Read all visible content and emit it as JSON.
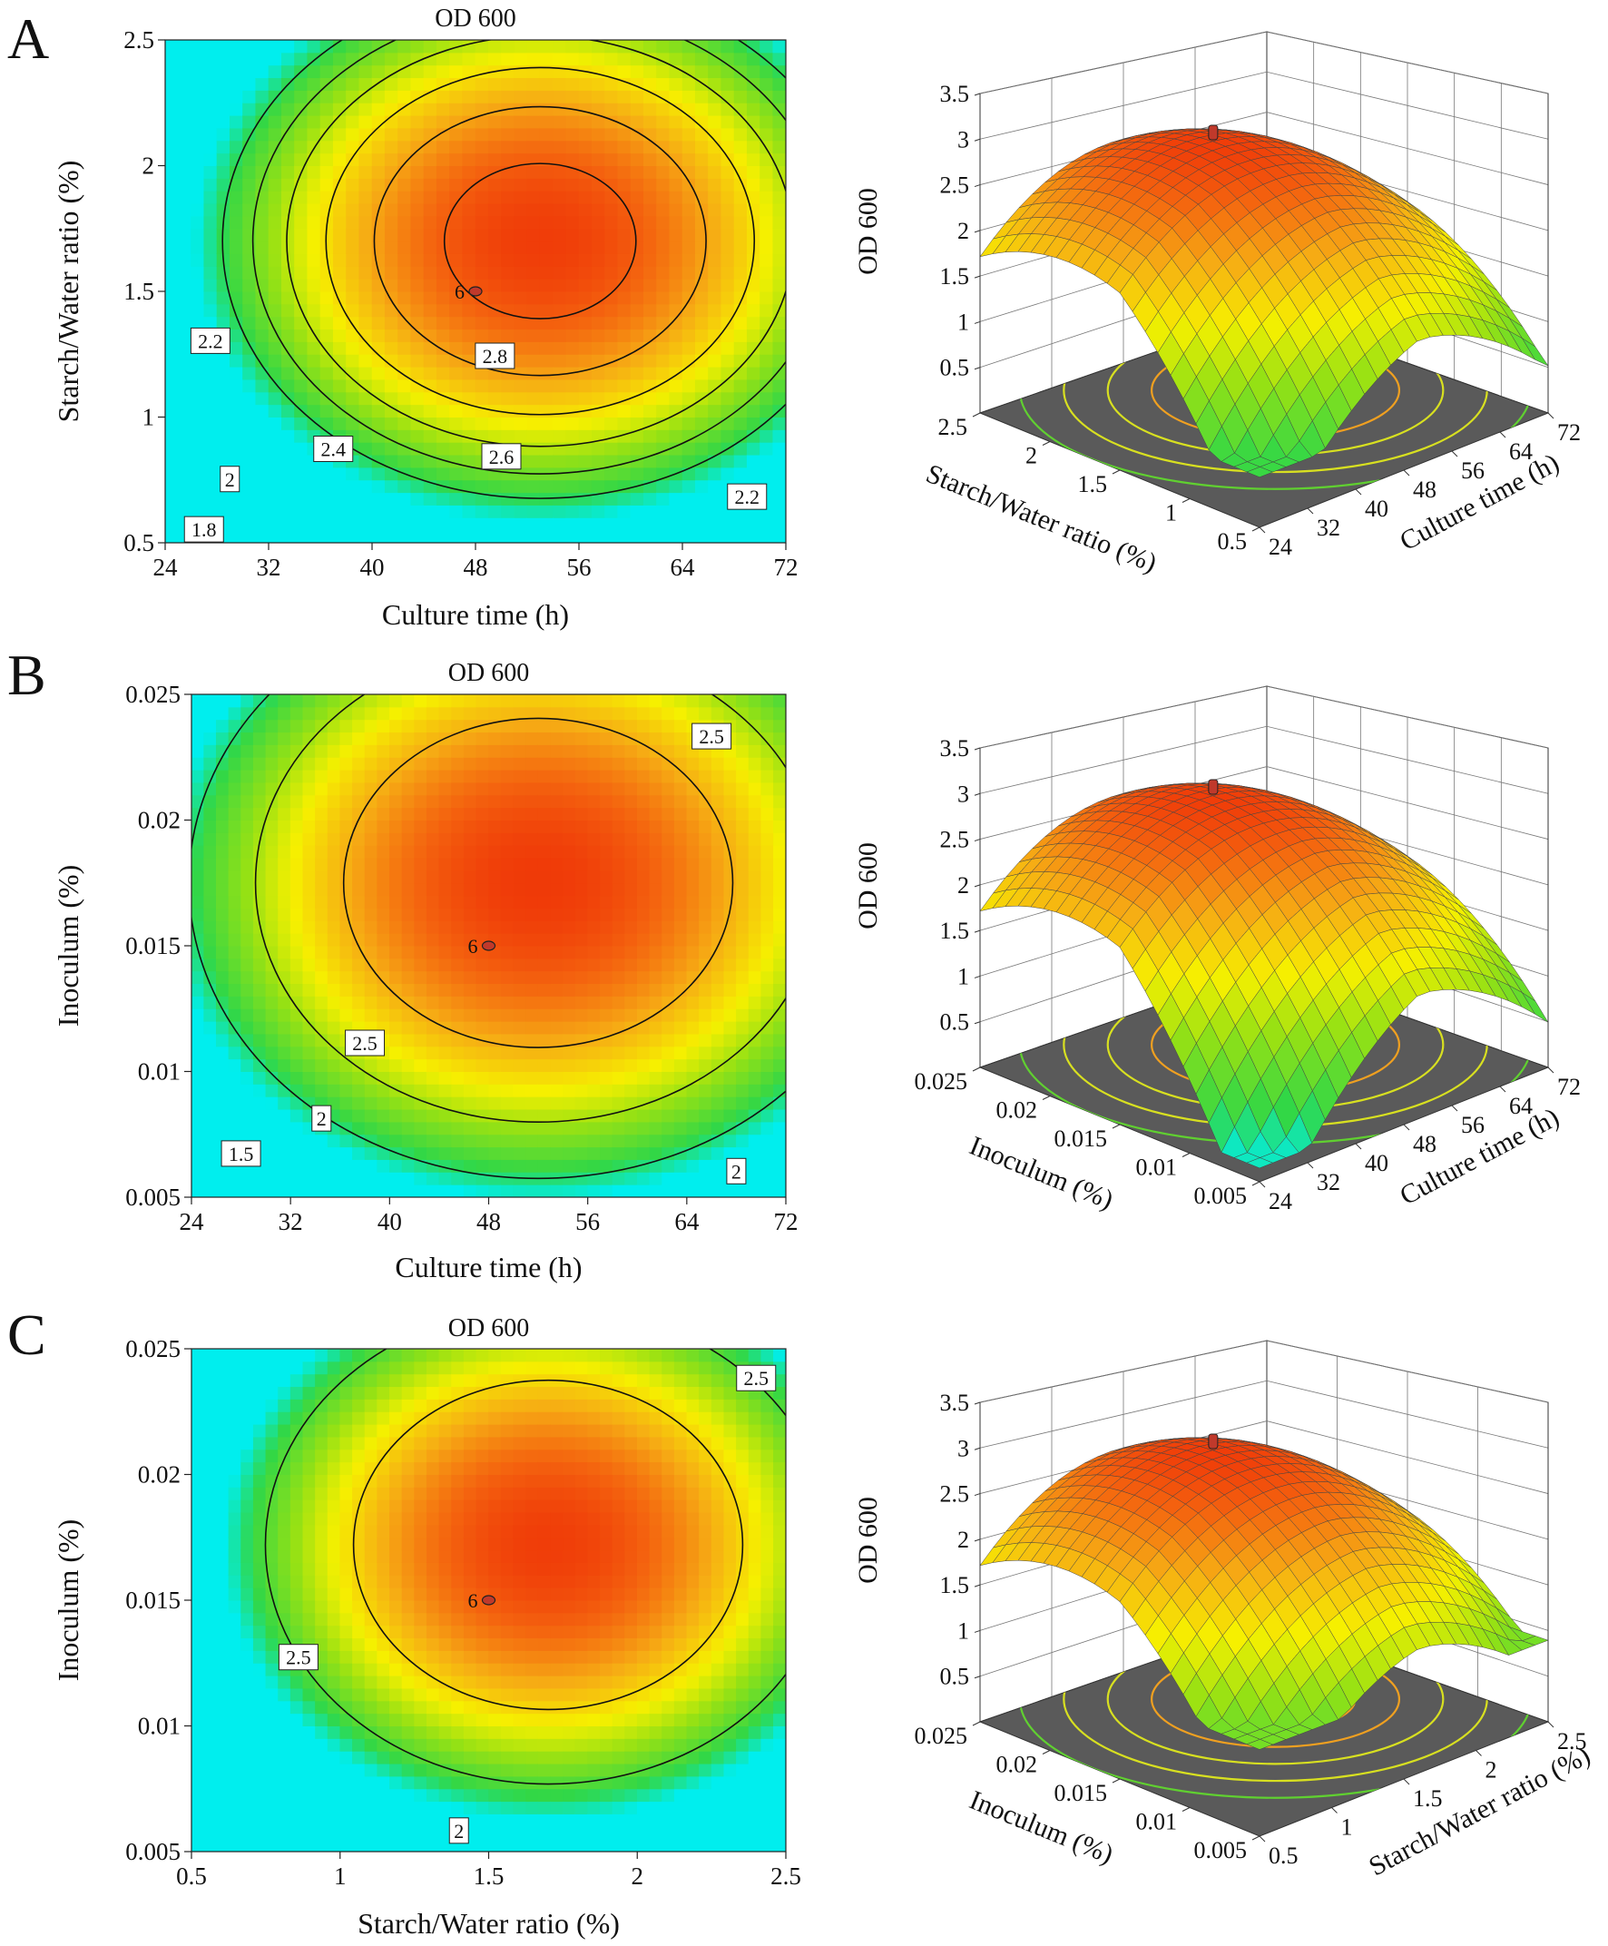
{
  "colors": {
    "contour_line": "#111111",
    "floor": "#5a5a5a",
    "surface_mesh": "#444444",
    "design_point": "#c0392b"
  },
  "chart_data": [
    {
      "panel": "A",
      "type": "contour",
      "title": "OD 600",
      "xlabel": "Culture time (h)",
      "ylabel": "Starch/Water ratio (%)",
      "xlim": [
        24,
        72
      ],
      "ylim": [
        0.5,
        2.5
      ],
      "xticks": [
        "24",
        "32",
        "40",
        "48",
        "56",
        "64",
        "72"
      ],
      "yticks": [
        "0.5",
        "1",
        "1.5",
        "2",
        "2.5"
      ],
      "model": {
        "cx": 53,
        "cy": 1.7,
        "peak": 2.9,
        "ax": 0.00043,
        "ay": 0.28
      },
      "zrange": [
        1.6,
        2.95
      ],
      "contour_levels": [
        "1.8",
        "2",
        "2.2",
        "2.4",
        "2.6",
        "2.8"
      ],
      "contour_labels": [
        {
          "text": "2.8",
          "x": 49.5,
          "y": 1.24
        },
        {
          "text": "2.6",
          "x": 50.0,
          "y": 0.84
        },
        {
          "text": "2.4",
          "x": 37.0,
          "y": 0.87
        },
        {
          "text": "2.2",
          "x": 27.5,
          "y": 1.3
        },
        {
          "text": "2",
          "x": 29.0,
          "y": 0.75
        },
        {
          "text": "1.8",
          "x": 27.0,
          "y": 0.55
        },
        {
          "text": "2.2",
          "x": 69.0,
          "y": 0.68
        }
      ],
      "design_point": {
        "x": 48,
        "y": 1.5,
        "label": "6"
      }
    },
    {
      "panel": "A",
      "type": "surface3d",
      "zlabel": "OD 600",
      "xlabel": "Culture time (h)",
      "ylabel": "Starch/Water ratio (%)",
      "zticks": [
        "0.5",
        "1",
        "1.5",
        "2",
        "2.5",
        "3",
        "3.5"
      ],
      "right_ticks": [
        "24",
        "32",
        "40",
        "48",
        "56",
        "64",
        "72"
      ],
      "left_ticks": [
        "0.5",
        "1",
        "1.5",
        "2",
        "2.5"
      ],
      "surface": {
        "corner_left": 1.9,
        "center": 2.95,
        "corner_right": 1.9,
        "corner_front": 0.55
      },
      "floor_contours": 5
    },
    {
      "panel": "B",
      "type": "contour",
      "title": "OD 600",
      "xlabel": "Culture time (h)",
      "ylabel": "Inoculum (%)",
      "xlim": [
        24,
        72
      ],
      "ylim": [
        0.005,
        0.025
      ],
      "xticks": [
        "24",
        "32",
        "40",
        "48",
        "56",
        "64",
        "72"
      ],
      "yticks": [
        "0.005",
        "0.01",
        "0.015",
        "0.02",
        "0.025"
      ],
      "model": {
        "cx": 52,
        "cy": 0.0175,
        "peak": 2.95,
        "ax": 0.00055,
        "ay": 6500
      },
      "zrange": [
        1.3,
        3.0
      ],
      "contour_levels": [
        "1.5",
        "2",
        "2.5"
      ],
      "contour_labels": [
        {
          "text": "2.5",
          "x": 66.0,
          "y": 0.0233
        },
        {
          "text": "2.5",
          "x": 38.0,
          "y": 0.0111
        },
        {
          "text": "2",
          "x": 34.5,
          "y": 0.0081
        },
        {
          "text": "1.5",
          "x": 28.0,
          "y": 0.0067
        },
        {
          "text": "2",
          "x": 68.0,
          "y": 0.006
        }
      ],
      "design_point": {
        "x": 48,
        "y": 0.015,
        "label": "6"
      }
    },
    {
      "panel": "B",
      "type": "surface3d",
      "zlabel": "OD 600",
      "xlabel": "Culture time (h)",
      "ylabel": "Inoculum (%)",
      "zticks": [
        "0.5",
        "1",
        "1.5",
        "2",
        "2.5",
        "3",
        "3.5"
      ],
      "right_ticks": [
        "24",
        "32",
        "40",
        "48",
        "56",
        "64",
        "72"
      ],
      "left_ticks": [
        "0.005",
        "0.01",
        "0.015",
        "0.02",
        "0.025"
      ],
      "surface": {
        "corner_left": 1.9,
        "center": 2.95,
        "corner_right": 1.7,
        "corner_front": 0.15
      },
      "floor_contours": 5
    },
    {
      "panel": "C",
      "type": "contour",
      "title": "OD 600",
      "xlabel": "Starch/Water ratio (%)",
      "ylabel": "Inoculum (%)",
      "xlim": [
        0.5,
        2.5
      ],
      "ylim": [
        0.005,
        0.025
      ],
      "xticks": [
        "0.5",
        "1",
        "1.5",
        "2",
        "2.5"
      ],
      "yticks": [
        "0.005",
        "0.01",
        "0.015",
        "0.02",
        "0.025"
      ],
      "model": {
        "cx": 1.7,
        "cy": 0.0172,
        "peak": 2.95,
        "ax": 0.23,
        "ay": 6200
      },
      "zrange": [
        1.7,
        3.0
      ],
      "contour_levels": [
        "2",
        "2.5"
      ],
      "contour_labels": [
        {
          "text": "2.5",
          "x": 2.4,
          "y": 0.0238
        },
        {
          "text": "2.5",
          "x": 0.86,
          "y": 0.0127
        },
        {
          "text": "2",
          "x": 1.4,
          "y": 0.0058
        }
      ],
      "design_point": {
        "x": 1.5,
        "y": 0.015,
        "label": "6"
      }
    },
    {
      "panel": "C",
      "type": "surface3d",
      "zlabel": "OD 600",
      "xlabel": "Starch/Water ratio (%)",
      "ylabel": "Inoculum (%)",
      "zticks": [
        "0.5",
        "1",
        "1.5",
        "2",
        "2.5",
        "3",
        "3.5"
      ],
      "right_ticks": [
        "0.5",
        "1",
        "1.5",
        "2",
        "2.5"
      ],
      "left_ticks": [
        "0.005",
        "0.01",
        "0.015",
        "0.02",
        "0.025"
      ],
      "surface": {
        "corner_left": 1.95,
        "center": 2.95,
        "corner_right": 1.75,
        "corner_front": 0.95
      },
      "floor_contours": 5
    }
  ]
}
